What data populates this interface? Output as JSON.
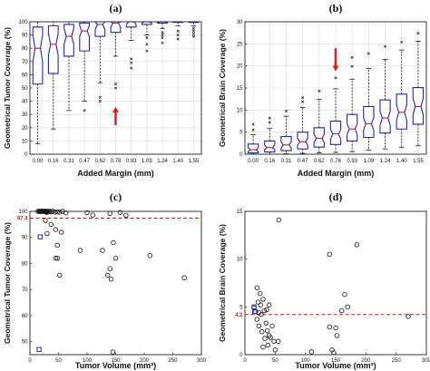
{
  "chart_data": [
    {
      "panel": "(a)",
      "type": "box",
      "xlabel": "Added Margin (mm)",
      "ylabel": "Geometrical Tumor Coverage (%)",
      "categories": [
        "0.00",
        "0.16",
        "0.31",
        "0.47",
        "0.62",
        "0.78",
        "0.93",
        "1.09",
        "1.24",
        "1.40",
        "1.55"
      ],
      "ylim": [
        0,
        100
      ],
      "yticks": [
        0,
        10,
        20,
        30,
        40,
        50,
        60,
        70,
        80,
        90,
        100
      ],
      "grid": true,
      "boxes": [
        {
          "whislo": 8,
          "q1": 53,
          "med": 80,
          "q3": 96,
          "whishi": 100,
          "notch_lo": 70,
          "notch_hi": 90,
          "fliers": []
        },
        {
          "whislo": 19,
          "q1": 61,
          "med": 83,
          "q3": 97,
          "whishi": 100,
          "notch_lo": 75,
          "notch_hi": 91,
          "fliers": []
        },
        {
          "whislo": 33,
          "q1": 74,
          "med": 89,
          "q3": 98,
          "whishi": 100,
          "notch_lo": 83,
          "notch_hi": 95,
          "fliers": []
        },
        {
          "whislo": 40,
          "q1": 78,
          "med": 93,
          "q3": 99,
          "whishi": 100,
          "notch_lo": 89,
          "notch_hi": 97,
          "fliers": [
            33
          ]
        },
        {
          "whislo": 54,
          "q1": 89,
          "med": 98,
          "q3": 100,
          "whishi": 100,
          "notch_lo": 94,
          "notch_hi": 100,
          "fliers": [
            40,
            43
          ]
        },
        {
          "whislo": 74,
          "q1": 92,
          "med": 99,
          "q3": 100,
          "whishi": 100,
          "notch_lo": 96,
          "notch_hi": 100,
          "fliers": [
            50,
            53
          ]
        },
        {
          "whislo": 86,
          "q1": 96,
          "med": 100,
          "q3": 100,
          "whishi": 100,
          "notch_lo": 98,
          "notch_hi": 100,
          "fliers": [
            65,
            69,
            72
          ]
        },
        {
          "whislo": 90,
          "q1": 98,
          "med": 100,
          "q3": 100,
          "whishi": 100,
          "notch_lo": 99,
          "notch_hi": 100,
          "fliers": [
            78,
            83,
            88
          ]
        },
        {
          "whislo": 95,
          "q1": 99,
          "med": 100,
          "q3": 100,
          "whishi": 100,
          "notch_lo": 99.5,
          "notch_hi": 100,
          "fliers": [
            84,
            88,
            90,
            92
          ]
        },
        {
          "whislo": 97,
          "q1": 99.5,
          "med": 100,
          "q3": 100,
          "whishi": 100,
          "notch_lo": 99.7,
          "notch_hi": 100,
          "fliers": [
            87,
            90,
            93
          ]
        },
        {
          "whislo": 97,
          "q1": 99.5,
          "med": 100,
          "q3": 100,
          "whishi": 100,
          "notch_lo": 99.7,
          "notch_hi": 100,
          "fliers": [
            89,
            91,
            93,
            95
          ]
        }
      ],
      "arrow": {
        "category": "0.78",
        "direction": "up",
        "y_from": 22,
        "y_to": 35
      }
    },
    {
      "panel": "(b)",
      "type": "box",
      "xlabel": "Added Margin (mm)",
      "ylabel": "Geometrical Brain Coverage (%)",
      "categories": [
        "0.00",
        "0.16",
        "0.31",
        "0.47",
        "0.62",
        "0.78",
        "0.93",
        "1.09",
        "1.24",
        "1.40",
        "1.55"
      ],
      "ylim": [
        0,
        30
      ],
      "yticks": [
        0,
        5,
        10,
        15,
        20,
        25,
        30
      ],
      "grid": true,
      "boxes": [
        {
          "whislo": 0,
          "q1": 0.3,
          "med": 1.0,
          "q3": 2.3,
          "whishi": 4.4,
          "notch_lo": 0.6,
          "notch_hi": 1.5,
          "fliers": [
            5.5,
            6.8
          ]
        },
        {
          "whislo": 0,
          "q1": 0.5,
          "med": 1.5,
          "q3": 3.0,
          "whishi": 5.8,
          "notch_lo": 1.0,
          "notch_hi": 2.1,
          "fliers": [
            7.2,
            8.2
          ]
        },
        {
          "whislo": 0.1,
          "q1": 0.8,
          "med": 2.1,
          "q3": 4.0,
          "whishi": 8.6,
          "notch_lo": 1.4,
          "notch_hi": 2.8,
          "fliers": [
            9.8
          ]
        },
        {
          "whislo": 0.2,
          "q1": 1.2,
          "med": 2.8,
          "q3": 5.0,
          "whishi": 10.6,
          "notch_lo": 2.0,
          "notch_hi": 3.6,
          "fliers": [
            11.9,
            12.8
          ]
        },
        {
          "whislo": 0.3,
          "q1": 1.6,
          "med": 3.6,
          "q3": 6.0,
          "whishi": 12.4,
          "notch_lo": 2.6,
          "notch_hi": 4.5,
          "fliers": [
            14.3
          ]
        },
        {
          "whislo": 0.4,
          "q1": 2.2,
          "med": 4.6,
          "q3": 7.5,
          "whishi": 14.8,
          "notch_lo": 3.4,
          "notch_hi": 5.6,
          "fliers": [
            17.3,
            20.5
          ]
        },
        {
          "whislo": 0.6,
          "q1": 3.0,
          "med": 5.7,
          "q3": 9.0,
          "whishi": 17.0,
          "notch_lo": 4.4,
          "notch_hi": 6.9,
          "fliers": [
            19.9,
            21.9
          ]
        },
        {
          "whislo": 0.9,
          "q1": 3.8,
          "med": 6.9,
          "q3": 10.8,
          "whishi": 19.4,
          "notch_lo": 5.4,
          "notch_hi": 8.3,
          "fliers": [
            22.8
          ]
        },
        {
          "whislo": 1.2,
          "q1": 4.8,
          "med": 8.2,
          "q3": 12.3,
          "whishi": 21.5,
          "notch_lo": 6.5,
          "notch_hi": 9.8,
          "fliers": [
            24.4
          ]
        },
        {
          "whislo": 1.5,
          "q1": 5.7,
          "med": 9.5,
          "q3": 13.6,
          "whishi": 23.6,
          "notch_lo": 7.7,
          "notch_hi": 11.2,
          "fliers": [
            25.4
          ]
        },
        {
          "whislo": 1.9,
          "q1": 6.8,
          "med": 10.8,
          "q3": 15.1,
          "whishi": 25.6,
          "notch_lo": 8.9,
          "notch_hi": 12.7,
          "fliers": [
            27.4
          ]
        }
      ],
      "arrow": {
        "category": "0.78",
        "direction": "down",
        "y_from": 24,
        "y_to": 19
      }
    },
    {
      "panel": "(c)",
      "type": "scatter",
      "xlabel": "Tumor Volume (mm³)",
      "ylabel": "Geometrical Tumor Coverage (%)",
      "xlim": [
        0,
        300
      ],
      "ylim": [
        45,
        100
      ],
      "xticks": [
        0,
        50,
        100,
        150,
        200,
        250,
        300
      ],
      "yticks": [
        50,
        60,
        70,
        80,
        90,
        100
      ],
      "grid": false,
      "reference_line": {
        "y": 97.4,
        "label": "97.4",
        "color": "#e0191b",
        "style": "dashed"
      },
      "points": [
        [
          14,
          100
        ],
        [
          16,
          100
        ],
        [
          17,
          100
        ],
        [
          18,
          100
        ],
        [
          19,
          100
        ],
        [
          20,
          100
        ],
        [
          21,
          100
        ],
        [
          22,
          100
        ],
        [
          23,
          100
        ],
        [
          24,
          100
        ],
        [
          25,
          100
        ],
        [
          26,
          100
        ],
        [
          27,
          100
        ],
        [
          28,
          100
        ],
        [
          29,
          99.6
        ],
        [
          30,
          100
        ],
        [
          31,
          99.7
        ],
        [
          33,
          100
        ],
        [
          35,
          100
        ],
        [
          37,
          99.8
        ],
        [
          40,
          100
        ],
        [
          44,
          99.7
        ],
        [
          48,
          99.8
        ],
        [
          52,
          99.7
        ],
        [
          57,
          100
        ],
        [
          63,
          99.4
        ],
        [
          100,
          99.5
        ],
        [
          110,
          98.6
        ],
        [
          140,
          99.2
        ],
        [
          158,
          99.6
        ],
        [
          168,
          98.5
        ],
        [
          27,
          96.5
        ],
        [
          37,
          95
        ],
        [
          45,
          93
        ],
        [
          30,
          91.5
        ],
        [
          55,
          92
        ],
        [
          48,
          87
        ],
        [
          45,
          82
        ],
        [
          48,
          82
        ],
        [
          88,
          85
        ],
        [
          127,
          85
        ],
        [
          146,
          88
        ],
        [
          150,
          82
        ],
        [
          140,
          78
        ],
        [
          136,
          75.5
        ],
        [
          142,
          74
        ],
        [
          210,
          83
        ],
        [
          270,
          74.5
        ],
        [
          52,
          75.5
        ],
        [
          145,
          46
        ]
      ],
      "highlight_points": [
        [
          18,
          90.2
        ],
        [
          16,
          47
        ]
      ],
      "highlight_color": "#1f1fd0"
    },
    {
      "panel": "(d)",
      "type": "scatter",
      "xlabel": "Tumor Volume (mm³)",
      "ylabel": "Geometrical Brain Coverage (%)",
      "xlim": [
        0,
        300
      ],
      "ylim": [
        0,
        15
      ],
      "xticks": [
        0,
        50,
        100,
        150,
        200,
        250,
        300
      ],
      "yticks": [
        0,
        5,
        10,
        15
      ],
      "grid": false,
      "reference_line": {
        "y": 4.2,
        "label": "4.2",
        "color": "#e0191b",
        "style": "dashed"
      },
      "points": [
        [
          56,
          14.1
        ],
        [
          185,
          11.5
        ],
        [
          140,
          10.5
        ],
        [
          20,
          7.0
        ],
        [
          25,
          6.4
        ],
        [
          30,
          5.8
        ],
        [
          40,
          5.2
        ],
        [
          15,
          4.9
        ],
        [
          32,
          4.6
        ],
        [
          18,
          4.5
        ],
        [
          23,
          4.4
        ],
        [
          27,
          4.2
        ],
        [
          20,
          3.7
        ],
        [
          35,
          3.3
        ],
        [
          23,
          3.0
        ],
        [
          45,
          3.0
        ],
        [
          140,
          2.9
        ],
        [
          28,
          2.4
        ],
        [
          40,
          2.0
        ],
        [
          33,
          1.7
        ],
        [
          48,
          1.4
        ],
        [
          55,
          1.4
        ],
        [
          42,
          1.8
        ],
        [
          170,
          5.0
        ],
        [
          165,
          6.3
        ],
        [
          160,
          4.6
        ],
        [
          150,
          2.8
        ],
        [
          152,
          2.0
        ],
        [
          270,
          4.0
        ],
        [
          144,
          0.5
        ],
        [
          147,
          0.2
        ],
        [
          110,
          0.3
        ],
        [
          50,
          0.5
        ],
        [
          38,
          1.0
        ],
        [
          30,
          0.8
        ],
        [
          37,
          2.5
        ],
        [
          22,
          5.5
        ],
        [
          26,
          5.2
        ],
        [
          36,
          4.7
        ]
      ],
      "highlight_points": [
        [
          15,
          5.0
        ],
        [
          16,
          4.5
        ]
      ],
      "highlight_color": "#1f1fd0"
    }
  ]
}
